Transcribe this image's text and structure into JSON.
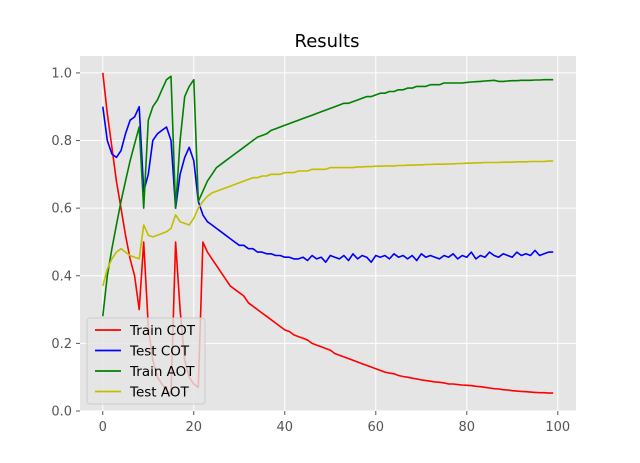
{
  "chart_data": {
    "type": "line",
    "title": "Results",
    "xlabel": "",
    "ylabel": "",
    "xlim": [
      -5,
      104
    ],
    "ylim": [
      0,
      1.05
    ],
    "grid": true,
    "legend_position": "lower-left",
    "xticks": [
      0,
      20,
      40,
      60,
      80,
      100
    ],
    "yticks": [
      0.0,
      0.2,
      0.4,
      0.6,
      0.8,
      1.0
    ],
    "xtick_labels": [
      "0",
      "20",
      "40",
      "60",
      "80",
      "100"
    ],
    "ytick_labels": [
      "0.0",
      "0.2",
      "0.4",
      "0.6",
      "0.8",
      "1.0"
    ],
    "colors": {
      "plot_bg": "#e5e5e5",
      "grid": "#ffffff",
      "legend_bg": "#e5e5e5",
      "legend_border": "#cccccc"
    },
    "series": [
      {
        "name": "Train COT",
        "color": "#ff0000",
        "x": [
          0,
          1,
          2,
          3,
          4,
          5,
          6,
          7,
          8,
          9,
          10,
          11,
          12,
          13,
          14,
          15,
          16,
          17,
          18,
          19,
          20,
          21,
          22,
          23,
          24,
          25,
          26,
          27,
          28,
          29,
          30,
          31,
          32,
          33,
          34,
          35,
          36,
          37,
          38,
          39,
          40,
          41,
          42,
          43,
          44,
          45,
          46,
          47,
          48,
          49,
          50,
          51,
          52,
          53,
          54,
          55,
          56,
          57,
          58,
          59,
          60,
          61,
          62,
          63,
          64,
          65,
          66,
          67,
          68,
          69,
          70,
          71,
          72,
          73,
          74,
          75,
          76,
          77,
          78,
          79,
          80,
          81,
          82,
          83,
          84,
          85,
          86,
          87,
          88,
          89,
          90,
          91,
          92,
          93,
          94,
          95,
          96,
          97,
          98,
          99
        ],
        "values": [
          1.0,
          0.88,
          0.78,
          0.68,
          0.6,
          0.52,
          0.45,
          0.4,
          0.3,
          0.5,
          0.25,
          0.15,
          0.1,
          0.08,
          0.06,
          0.05,
          0.5,
          0.3,
          0.15,
          0.1,
          0.08,
          0.07,
          0.5,
          0.47,
          0.45,
          0.43,
          0.41,
          0.39,
          0.37,
          0.36,
          0.35,
          0.34,
          0.32,
          0.31,
          0.3,
          0.29,
          0.28,
          0.27,
          0.26,
          0.25,
          0.24,
          0.235,
          0.225,
          0.22,
          0.215,
          0.21,
          0.2,
          0.195,
          0.19,
          0.185,
          0.18,
          0.17,
          0.165,
          0.16,
          0.155,
          0.15,
          0.145,
          0.14,
          0.135,
          0.13,
          0.125,
          0.12,
          0.115,
          0.112,
          0.11,
          0.105,
          0.102,
          0.1,
          0.097,
          0.095,
          0.092,
          0.09,
          0.088,
          0.086,
          0.085,
          0.083,
          0.08,
          0.08,
          0.078,
          0.077,
          0.076,
          0.075,
          0.073,
          0.072,
          0.07,
          0.068,
          0.066,
          0.065,
          0.063,
          0.062,
          0.06,
          0.059,
          0.058,
          0.057,
          0.056,
          0.055,
          0.054,
          0.054,
          0.053,
          0.053
        ]
      },
      {
        "name": "Test COT",
        "color": "#0000ff",
        "x": [
          0,
          1,
          2,
          3,
          4,
          5,
          6,
          7,
          8,
          9,
          10,
          11,
          12,
          13,
          14,
          15,
          16,
          17,
          18,
          19,
          20,
          21,
          22,
          23,
          24,
          25,
          26,
          27,
          28,
          29,
          30,
          31,
          32,
          33,
          34,
          35,
          36,
          37,
          38,
          39,
          40,
          41,
          42,
          43,
          44,
          45,
          46,
          47,
          48,
          49,
          50,
          51,
          52,
          53,
          54,
          55,
          56,
          57,
          58,
          59,
          60,
          61,
          62,
          63,
          64,
          65,
          66,
          67,
          68,
          69,
          70,
          71,
          72,
          73,
          74,
          75,
          76,
          77,
          78,
          79,
          80,
          81,
          82,
          83,
          84,
          85,
          86,
          87,
          88,
          89,
          90,
          91,
          92,
          93,
          94,
          95,
          96,
          97,
          98,
          99
        ],
        "values": [
          0.9,
          0.8,
          0.76,
          0.75,
          0.77,
          0.82,
          0.86,
          0.87,
          0.9,
          0.65,
          0.7,
          0.8,
          0.82,
          0.83,
          0.84,
          0.8,
          0.6,
          0.7,
          0.75,
          0.78,
          0.74,
          0.62,
          0.58,
          0.56,
          0.55,
          0.54,
          0.53,
          0.52,
          0.51,
          0.5,
          0.49,
          0.49,
          0.48,
          0.48,
          0.47,
          0.47,
          0.465,
          0.465,
          0.46,
          0.46,
          0.455,
          0.455,
          0.45,
          0.45,
          0.455,
          0.445,
          0.46,
          0.45,
          0.455,
          0.44,
          0.46,
          0.455,
          0.45,
          0.46,
          0.445,
          0.465,
          0.45,
          0.46,
          0.455,
          0.44,
          0.46,
          0.455,
          0.46,
          0.45,
          0.465,
          0.455,
          0.46,
          0.45,
          0.46,
          0.445,
          0.465,
          0.455,
          0.46,
          0.455,
          0.45,
          0.46,
          0.455,
          0.465,
          0.45,
          0.46,
          0.455,
          0.47,
          0.45,
          0.46,
          0.455,
          0.47,
          0.46,
          0.455,
          0.465,
          0.46,
          0.455,
          0.47,
          0.46,
          0.465,
          0.46,
          0.475,
          0.46,
          0.465,
          0.47,
          0.47
        ]
      },
      {
        "name": "Train AOT",
        "color": "#008000",
        "x": [
          0,
          1,
          2,
          3,
          4,
          5,
          6,
          7,
          8,
          9,
          10,
          11,
          12,
          13,
          14,
          15,
          16,
          17,
          18,
          19,
          20,
          21,
          22,
          23,
          24,
          25,
          26,
          27,
          28,
          29,
          30,
          31,
          32,
          33,
          34,
          35,
          36,
          37,
          38,
          39,
          40,
          41,
          42,
          43,
          44,
          45,
          46,
          47,
          48,
          49,
          50,
          51,
          52,
          53,
          54,
          55,
          56,
          57,
          58,
          59,
          60,
          61,
          62,
          63,
          64,
          65,
          66,
          67,
          68,
          69,
          70,
          71,
          72,
          73,
          74,
          75,
          76,
          77,
          78,
          79,
          80,
          81,
          82,
          83,
          84,
          85,
          86,
          87,
          88,
          89,
          90,
          91,
          92,
          93,
          94,
          95,
          96,
          97,
          98,
          99
        ],
        "values": [
          0.28,
          0.4,
          0.48,
          0.55,
          0.62,
          0.68,
          0.74,
          0.79,
          0.84,
          0.6,
          0.86,
          0.9,
          0.92,
          0.95,
          0.98,
          0.99,
          0.6,
          0.8,
          0.93,
          0.96,
          0.98,
          0.62,
          0.65,
          0.68,
          0.7,
          0.72,
          0.73,
          0.74,
          0.75,
          0.76,
          0.77,
          0.78,
          0.79,
          0.8,
          0.81,
          0.815,
          0.82,
          0.83,
          0.835,
          0.84,
          0.845,
          0.85,
          0.855,
          0.86,
          0.865,
          0.87,
          0.875,
          0.88,
          0.885,
          0.89,
          0.895,
          0.9,
          0.905,
          0.91,
          0.91,
          0.915,
          0.92,
          0.925,
          0.93,
          0.93,
          0.935,
          0.94,
          0.94,
          0.945,
          0.945,
          0.95,
          0.95,
          0.955,
          0.955,
          0.96,
          0.96,
          0.96,
          0.965,
          0.965,
          0.965,
          0.97,
          0.97,
          0.97,
          0.97,
          0.97,
          0.972,
          0.973,
          0.974,
          0.975,
          0.976,
          0.977,
          0.978,
          0.975,
          0.975,
          0.976,
          0.977,
          0.977,
          0.978,
          0.978,
          0.978,
          0.979,
          0.979,
          0.98,
          0.98,
          0.98
        ]
      },
      {
        "name": "Test AOT",
        "color": "#bfbf00",
        "x": [
          0,
          1,
          2,
          3,
          4,
          5,
          6,
          7,
          8,
          9,
          10,
          11,
          12,
          13,
          14,
          15,
          16,
          17,
          18,
          19,
          20,
          21,
          22,
          23,
          24,
          25,
          26,
          27,
          28,
          29,
          30,
          31,
          32,
          33,
          34,
          35,
          36,
          37,
          38,
          39,
          40,
          41,
          42,
          43,
          44,
          45,
          46,
          47,
          48,
          49,
          50,
          51,
          52,
          53,
          54,
          55,
          56,
          57,
          58,
          59,
          60,
          61,
          62,
          63,
          64,
          65,
          66,
          67,
          68,
          69,
          70,
          71,
          72,
          73,
          74,
          75,
          76,
          77,
          78,
          79,
          80,
          81,
          82,
          83,
          84,
          85,
          86,
          87,
          88,
          89,
          90,
          91,
          92,
          93,
          94,
          95,
          96,
          97,
          98,
          99
        ],
        "values": [
          0.37,
          0.42,
          0.45,
          0.47,
          0.48,
          0.47,
          0.46,
          0.455,
          0.45,
          0.55,
          0.52,
          0.515,
          0.52,
          0.525,
          0.53,
          0.54,
          0.58,
          0.56,
          0.555,
          0.55,
          0.57,
          0.6,
          0.62,
          0.635,
          0.645,
          0.65,
          0.655,
          0.66,
          0.665,
          0.67,
          0.675,
          0.68,
          0.685,
          0.69,
          0.69,
          0.695,
          0.695,
          0.7,
          0.7,
          0.7,
          0.705,
          0.705,
          0.705,
          0.71,
          0.71,
          0.71,
          0.715,
          0.715,
          0.715,
          0.715,
          0.72,
          0.72,
          0.72,
          0.72,
          0.72,
          0.72,
          0.722,
          0.722,
          0.723,
          0.723,
          0.724,
          0.724,
          0.725,
          0.725,
          0.725,
          0.726,
          0.726,
          0.727,
          0.727,
          0.728,
          0.728,
          0.729,
          0.729,
          0.73,
          0.73,
          0.73,
          0.731,
          0.731,
          0.732,
          0.732,
          0.733,
          0.733,
          0.734,
          0.734,
          0.735,
          0.735,
          0.735,
          0.735,
          0.736,
          0.736,
          0.736,
          0.737,
          0.737,
          0.737,
          0.738,
          0.738,
          0.738,
          0.738,
          0.739,
          0.739
        ]
      }
    ]
  }
}
